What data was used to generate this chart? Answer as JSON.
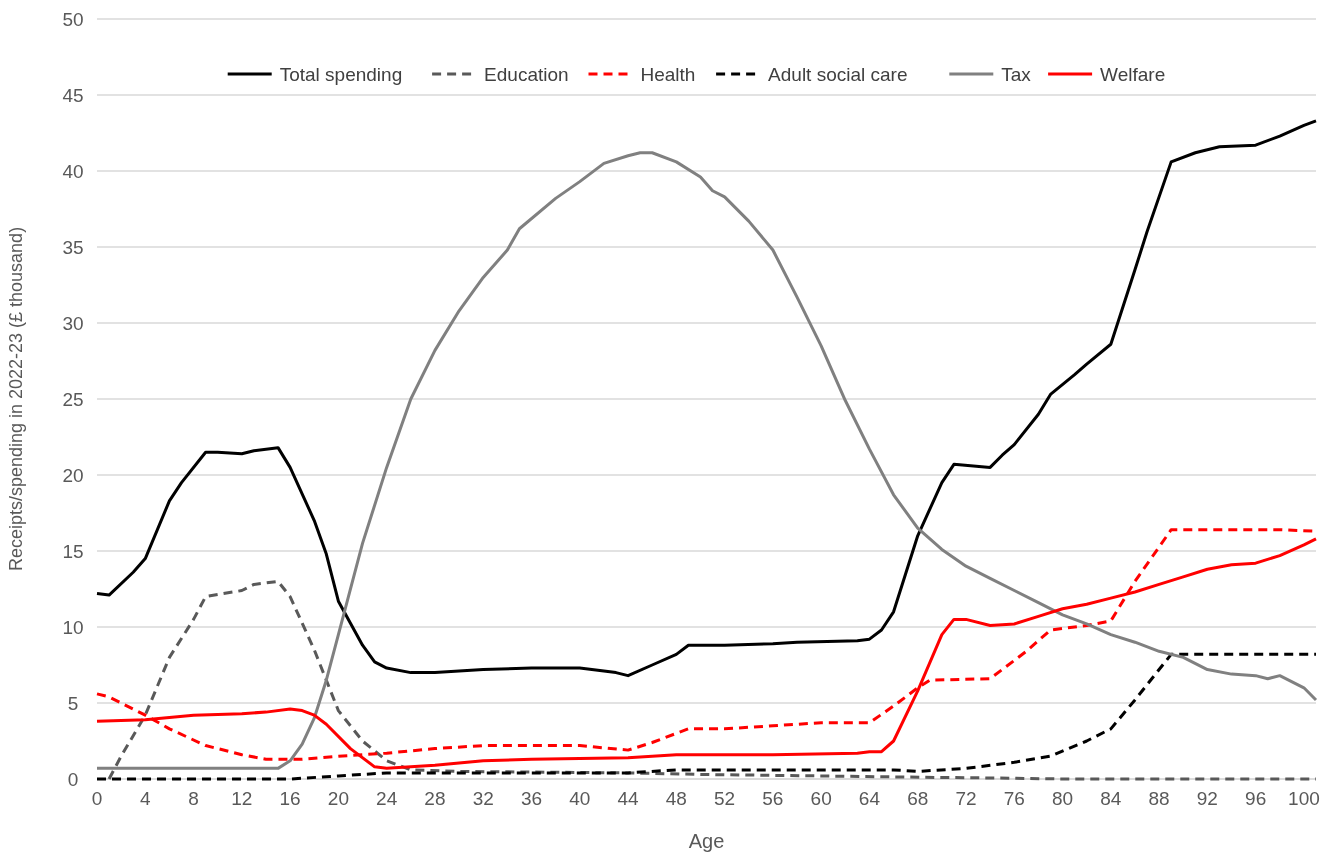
{
  "chart_data": {
    "type": "line",
    "xlabel": "Age",
    "ylabel": "Receipts/spending in 2022-23 (£ thousand)",
    "xlim": [
      0,
      101
    ],
    "xticks": [
      0,
      4,
      8,
      12,
      16,
      20,
      24,
      28,
      32,
      36,
      40,
      44,
      48,
      52,
      56,
      60,
      64,
      68,
      72,
      76,
      80,
      84,
      88,
      92,
      96,
      100
    ],
    "ylim": [
      0,
      50
    ],
    "yticks": [
      0,
      5,
      10,
      15,
      20,
      25,
      30,
      35,
      40,
      45,
      50
    ],
    "grid": "y",
    "legend": "top",
    "series": [
      {
        "name": "Total spending",
        "color": "#000000",
        "line_style": "solid",
        "x": [
          0,
          1,
          3,
          4,
          6,
          7,
          9,
          10,
          12,
          13,
          15,
          16,
          18,
          19,
          20,
          22,
          23,
          24,
          26,
          28,
          30,
          32,
          36,
          40,
          43,
          44,
          46,
          48,
          49,
          52,
          56,
          58,
          63,
          64,
          65,
          66,
          67,
          68,
          70,
          71,
          74,
          75,
          76,
          78,
          79,
          81,
          82,
          84,
          86,
          87,
          89,
          91,
          93,
          96,
          98,
          100,
          101
        ],
        "values": [
          12.2,
          12.1,
          13.6,
          14.5,
          18.3,
          19.5,
          21.5,
          21.5,
          21.4,
          21.6,
          21.8,
          20.5,
          17,
          14.8,
          11.7,
          8.8,
          7.7,
          7.3,
          7.0,
          7.0,
          7.1,
          7.2,
          7.3,
          7.3,
          7.0,
          6.8,
          7.5,
          8.2,
          8.8,
          8.8,
          8.9,
          9.0,
          9.1,
          9.2,
          9.8,
          11,
          13.5,
          16,
          19.5,
          20.7,
          20.5,
          21.3,
          22,
          24,
          25.3,
          26.6,
          27.3,
          28.6,
          33.5,
          36,
          40.6,
          41.2,
          41.6,
          41.7,
          42.3,
          43,
          43.3
        ]
      },
      {
        "name": "Education",
        "color": "#595959",
        "line_style": "dashed",
        "x": [
          1,
          2,
          4,
          6,
          8,
          9,
          12,
          13,
          15,
          16,
          18,
          20,
          22,
          24,
          26,
          30,
          44,
          50,
          60,
          70,
          76,
          80,
          101
        ],
        "values": [
          0,
          1.5,
          4.2,
          8,
          10.5,
          12,
          12.4,
          12.8,
          13,
          12,
          8.5,
          4.5,
          2.5,
          1.2,
          0.6,
          0.5,
          0.4,
          0.3,
          0.2,
          0.1,
          0.05,
          0,
          0
        ]
      },
      {
        "name": "Health",
        "color": "#ff0000",
        "line_style": "dashed",
        "x": [
          0,
          1,
          4,
          6,
          9,
          12,
          14,
          17,
          20,
          24,
          28,
          32,
          40,
          44,
          46,
          49,
          52,
          56,
          60,
          64,
          66,
          68,
          69,
          74,
          77,
          79,
          82,
          84,
          86,
          89,
          92,
          98,
          101
        ],
        "values": [
          5.6,
          5.4,
          4.2,
          3.3,
          2.2,
          1.6,
          1.3,
          1.3,
          1.5,
          1.7,
          2.0,
          2.2,
          2.2,
          1.9,
          2.4,
          3.3,
          3.3,
          3.5,
          3.7,
          3.7,
          4.8,
          6.0,
          6.5,
          6.6,
          8.4,
          9.8,
          10.1,
          10.4,
          13,
          16.4,
          16.4,
          16.4,
          16.3
        ]
      },
      {
        "name": "Adult social care",
        "color": "#000000",
        "line_style": "dashed",
        "x": [
          0,
          16,
          20,
          24,
          44,
          48,
          66,
          68,
          72,
          76,
          79,
          82,
          84,
          86,
          89,
          101
        ],
        "values": [
          0,
          0,
          0.2,
          0.4,
          0.4,
          0.6,
          0.6,
          0.5,
          0.7,
          1.1,
          1.5,
          2.5,
          3.3,
          5.2,
          8.2,
          8.2
        ]
      },
      {
        "name": "Tax",
        "color": "#808080",
        "line_style": "solid",
        "x": [
          0,
          15,
          16,
          17,
          18,
          19,
          20,
          22,
          24,
          26,
          28,
          30,
          32,
          34,
          35,
          38,
          40,
          42,
          44,
          45,
          46,
          48,
          50,
          51,
          52,
          54,
          56,
          58,
          60,
          62,
          64,
          66,
          68,
          70,
          72,
          74,
          76,
          78,
          80,
          82,
          84,
          86,
          88,
          90,
          92,
          94,
          96,
          97,
          98,
          100,
          101
        ],
        "values": [
          0.7,
          0.7,
          1.2,
          2.3,
          4,
          6.5,
          9.5,
          15.5,
          20.5,
          25,
          28.2,
          30.8,
          33,
          34.8,
          36.2,
          38.2,
          39.3,
          40.5,
          41,
          41.2,
          41.2,
          40.6,
          39.6,
          38.7,
          38.3,
          36.7,
          34.8,
          31.7,
          28.5,
          24.9,
          21.7,
          18.7,
          16.5,
          15.1,
          14,
          13.2,
          12.4,
          11.6,
          10.8,
          10.2,
          9.5,
          9,
          8.4,
          8.0,
          7.2,
          6.9,
          6.8,
          6.6,
          6.8,
          6.0,
          5.2
        ]
      },
      {
        "name": "Welfare",
        "color": "#ff0000",
        "line_style": "solid",
        "x": [
          0,
          4,
          8,
          12,
          14,
          16,
          17,
          18,
          19,
          21,
          23,
          24,
          28,
          32,
          36,
          44,
          48,
          56,
          63,
          64,
          65,
          66,
          68,
          70,
          71,
          72,
          74,
          76,
          78,
          80,
          82,
          84,
          86,
          88,
          90,
          92,
          94,
          96,
          98,
          100,
          101
        ],
        "values": [
          3.8,
          3.9,
          4.2,
          4.3,
          4.4,
          4.6,
          4.5,
          4.2,
          3.6,
          2,
          0.8,
          0.7,
          0.9,
          1.2,
          1.3,
          1.4,
          1.6,
          1.6,
          1.7,
          1.8,
          1.8,
          2.5,
          5.8,
          9.5,
          10.5,
          10.5,
          10.1,
          10.2,
          10.7,
          11.2,
          11.5,
          11.9,
          12.3,
          12.8,
          13.3,
          13.8,
          14.1,
          14.2,
          14.7,
          15.4,
          15.8
        ]
      }
    ]
  }
}
